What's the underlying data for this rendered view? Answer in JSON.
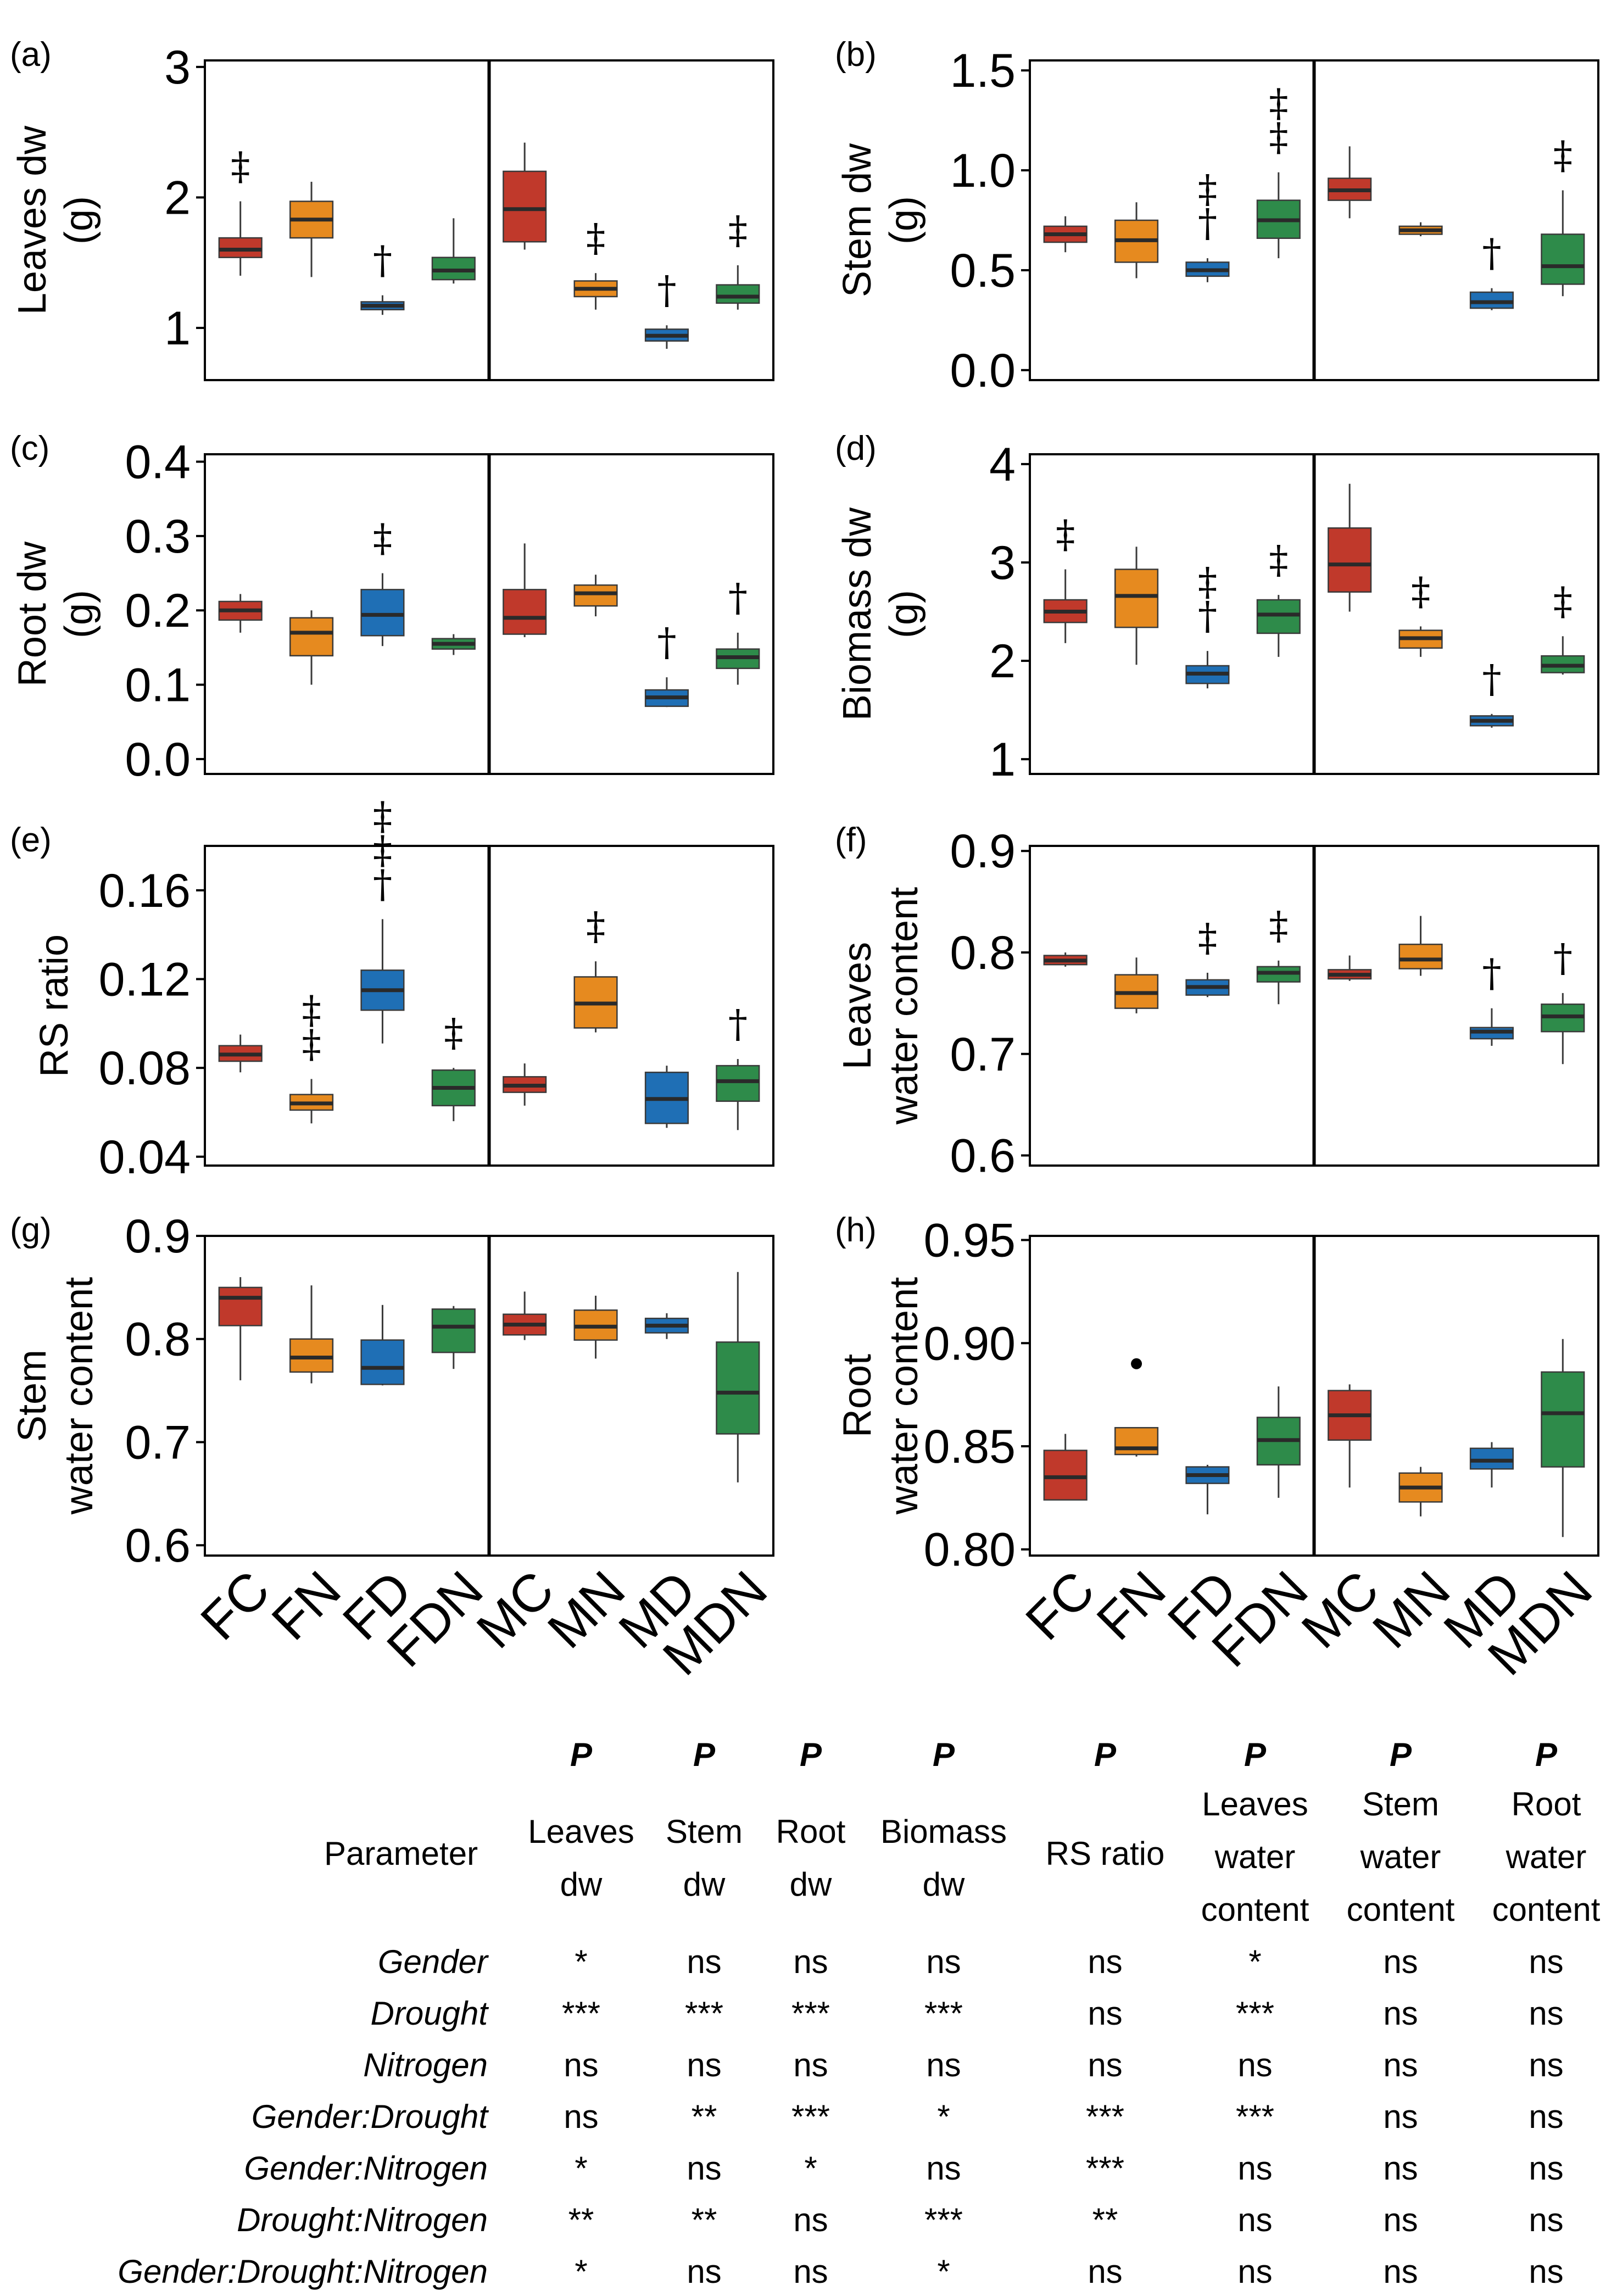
{
  "groups": [
    "FC",
    "FN",
    "FD",
    "FDN",
    "MC",
    "MN",
    "MD",
    "MDN"
  ],
  "colors": [
    "#c0392b",
    "#e68a1f",
    "#1f6fb5",
    "#2e8b4a",
    "#c0392b",
    "#e68a1f",
    "#1f6fb5",
    "#2e8b4a"
  ],
  "chart_data": [
    {
      "type": "box",
      "id": "a",
      "panel_label": "(a)",
      "ylabel": [
        "Leaves dw",
        "(g)"
      ],
      "ylim": [
        0.6,
        3.05
      ],
      "yticks": [
        1,
        2,
        3
      ],
      "ytick_labels": [
        "1",
        "2",
        "3"
      ],
      "boxes": [
        {
          "min": 1.4,
          "q1": 1.54,
          "median": 1.6,
          "q3": 1.69,
          "max": 1.97
        },
        {
          "min": 1.39,
          "q1": 1.69,
          "median": 1.83,
          "q3": 1.97,
          "max": 2.12
        },
        {
          "min": 1.1,
          "q1": 1.14,
          "median": 1.17,
          "q3": 1.2,
          "max": 1.25
        },
        {
          "min": 1.34,
          "q1": 1.37,
          "median": 1.44,
          "q3": 1.54,
          "max": 1.84
        },
        {
          "min": 1.6,
          "q1": 1.66,
          "median": 1.91,
          "q3": 2.2,
          "max": 2.42
        },
        {
          "min": 1.14,
          "q1": 1.24,
          "median": 1.3,
          "q3": 1.36,
          "max": 1.42
        },
        {
          "min": 0.84,
          "q1": 0.9,
          "median": 0.94,
          "q3": 0.99,
          "max": 1.02
        },
        {
          "min": 1.14,
          "q1": 1.19,
          "median": 1.24,
          "q3": 1.33,
          "max": 1.48
        }
      ],
      "markers": [
        [
          "‡"
        ],
        [],
        [
          "†"
        ],
        [],
        [],
        [
          "‡"
        ],
        [
          "†"
        ],
        [
          "‡"
        ]
      ],
      "outliers": []
    },
    {
      "type": "box",
      "id": "b",
      "panel_label": "(b)",
      "ylabel": [
        "Stem dw",
        "(g)"
      ],
      "ylim": [
        -0.05,
        1.55
      ],
      "yticks": [
        0.0,
        0.5,
        1.0,
        1.5
      ],
      "ytick_labels": [
        "0.0",
        "0.5",
        "1.0",
        "1.5"
      ],
      "boxes": [
        {
          "min": 0.59,
          "q1": 0.64,
          "median": 0.68,
          "q3": 0.72,
          "max": 0.77
        },
        {
          "min": 0.46,
          "q1": 0.54,
          "median": 0.65,
          "q3": 0.75,
          "max": 0.84
        },
        {
          "min": 0.44,
          "q1": 0.47,
          "median": 0.5,
          "q3": 0.54,
          "max": 0.56
        },
        {
          "min": 0.56,
          "q1": 0.66,
          "median": 0.75,
          "q3": 0.85,
          "max": 0.99
        },
        {
          "min": 0.76,
          "q1": 0.85,
          "median": 0.9,
          "q3": 0.96,
          "max": 1.12
        },
        {
          "min": 0.67,
          "q1": 0.68,
          "median": 0.7,
          "q3": 0.72,
          "max": 0.74
        },
        {
          "min": 0.3,
          "q1": 0.31,
          "median": 0.34,
          "q3": 0.39,
          "max": 0.41
        },
        {
          "min": 0.37,
          "q1": 0.43,
          "median": 0.52,
          "q3": 0.68,
          "max": 0.9
        }
      ],
      "markers": [
        [],
        [],
        [
          "‡",
          "†"
        ],
        [
          "‡",
          "‡"
        ],
        [],
        [],
        [
          "†"
        ],
        [
          "‡"
        ]
      ],
      "outliers": []
    },
    {
      "type": "box",
      "id": "c",
      "panel_label": "(c)",
      "ylabel": [
        "Root dw",
        "(g)"
      ],
      "ylim": [
        -0.02,
        0.41
      ],
      "yticks": [
        0.0,
        0.1,
        0.2,
        0.3,
        0.4
      ],
      "ytick_labels": [
        "0.0",
        "0.1",
        "0.2",
        "0.3",
        "0.4"
      ],
      "boxes": [
        {
          "min": 0.17,
          "q1": 0.187,
          "median": 0.2,
          "q3": 0.212,
          "max": 0.222
        },
        {
          "min": 0.1,
          "q1": 0.139,
          "median": 0.17,
          "q3": 0.19,
          "max": 0.2
        },
        {
          "min": 0.152,
          "q1": 0.166,
          "median": 0.194,
          "q3": 0.228,
          "max": 0.25
        },
        {
          "min": 0.14,
          "q1": 0.148,
          "median": 0.155,
          "q3": 0.162,
          "max": 0.168
        },
        {
          "min": 0.164,
          "q1": 0.168,
          "median": 0.19,
          "q3": 0.228,
          "max": 0.29
        },
        {
          "min": 0.192,
          "q1": 0.206,
          "median": 0.223,
          "q3": 0.234,
          "max": 0.248
        },
        {
          "min": 0.07,
          "q1": 0.071,
          "median": 0.083,
          "q3": 0.093,
          "max": 0.11
        },
        {
          "min": 0.1,
          "q1": 0.122,
          "median": 0.137,
          "q3": 0.148,
          "max": 0.17
        }
      ],
      "markers": [
        [],
        [],
        [
          "‡"
        ],
        [],
        [],
        [],
        [
          "†"
        ],
        [
          "†"
        ]
      ],
      "outliers": []
    },
    {
      "type": "box",
      "id": "d",
      "panel_label": "(d)",
      "ylabel": [
        "Biomass dw",
        "(g)"
      ],
      "ylim": [
        0.85,
        4.1
      ],
      "yticks": [
        1,
        2,
        3,
        4
      ],
      "ytick_labels": [
        "1",
        "2",
        "3",
        "4"
      ],
      "boxes": [
        {
          "min": 2.18,
          "q1": 2.39,
          "median": 2.5,
          "q3": 2.62,
          "max": 2.93
        },
        {
          "min": 1.96,
          "q1": 2.34,
          "median": 2.66,
          "q3": 2.93,
          "max": 3.16
        },
        {
          "min": 1.72,
          "q1": 1.77,
          "median": 1.87,
          "q3": 1.95,
          "max": 2.1
        },
        {
          "min": 2.04,
          "q1": 2.28,
          "median": 2.47,
          "q3": 2.62,
          "max": 2.67
        },
        {
          "min": 2.5,
          "q1": 2.7,
          "median": 2.98,
          "q3": 3.35,
          "max": 3.8
        },
        {
          "min": 2.04,
          "q1": 2.13,
          "median": 2.23,
          "q3": 2.31,
          "max": 2.35
        },
        {
          "min": 1.32,
          "q1": 1.34,
          "median": 1.39,
          "q3": 1.44,
          "max": 1.46
        },
        {
          "min": 1.86,
          "q1": 1.88,
          "median": 1.95,
          "q3": 2.05,
          "max": 2.25
        }
      ],
      "markers": [
        [
          "‡"
        ],
        [],
        [
          "‡",
          "†"
        ],
        [
          "‡"
        ],
        [],
        [
          "‡"
        ],
        [
          "†"
        ],
        [
          "‡"
        ]
      ],
      "outliers": []
    },
    {
      "type": "box",
      "id": "e",
      "panel_label": "(e)",
      "ylabel": [
        "RS ratio"
      ],
      "ylim": [
        0.036,
        0.18
      ],
      "yticks": [
        0.04,
        0.08,
        0.12,
        0.16
      ],
      "ytick_labels": [
        "0.04",
        "0.08",
        "0.12",
        "0.16"
      ],
      "boxes": [
        {
          "min": 0.078,
          "q1": 0.083,
          "median": 0.086,
          "q3": 0.09,
          "max": 0.095
        },
        {
          "min": 0.055,
          "q1": 0.061,
          "median": 0.064,
          "q3": 0.068,
          "max": 0.075
        },
        {
          "min": 0.091,
          "q1": 0.106,
          "median": 0.115,
          "q3": 0.124,
          "max": 0.147
        },
        {
          "min": 0.056,
          "q1": 0.063,
          "median": 0.071,
          "q3": 0.079,
          "max": 0.08
        },
        {
          "min": 0.063,
          "q1": 0.069,
          "median": 0.072,
          "q3": 0.076,
          "max": 0.082
        },
        {
          "min": 0.096,
          "q1": 0.098,
          "median": 0.109,
          "q3": 0.121,
          "max": 0.128
        },
        {
          "min": 0.053,
          "q1": 0.055,
          "median": 0.066,
          "q3": 0.078,
          "max": 0.081
        },
        {
          "min": 0.052,
          "q1": 0.065,
          "median": 0.074,
          "q3": 0.081,
          "max": 0.084
        }
      ],
      "markers": [
        [],
        [
          "‡",
          "‡"
        ],
        [
          "‡",
          "‡",
          "†"
        ],
        [
          "‡"
        ],
        [],
        [
          "‡"
        ],
        [],
        [
          "†"
        ]
      ],
      "outliers": []
    },
    {
      "type": "box",
      "id": "f",
      "panel_label": "(f)",
      "ylabel": [
        "Leaves",
        "water content"
      ],
      "ylim": [
        0.59,
        0.905
      ],
      "yticks": [
        0.6,
        0.7,
        0.8,
        0.9
      ],
      "ytick_labels": [
        "0.6",
        "0.7",
        "0.8",
        "0.9"
      ],
      "boxes": [
        {
          "min": 0.786,
          "q1": 0.788,
          "median": 0.792,
          "q3": 0.797,
          "max": 0.8
        },
        {
          "min": 0.74,
          "q1": 0.745,
          "median": 0.76,
          "q3": 0.778,
          "max": 0.795
        },
        {
          "min": 0.756,
          "q1": 0.758,
          "median": 0.766,
          "q3": 0.773,
          "max": 0.78
        },
        {
          "min": 0.749,
          "q1": 0.771,
          "median": 0.78,
          "q3": 0.786,
          "max": 0.792
        },
        {
          "min": 0.772,
          "q1": 0.774,
          "median": 0.778,
          "q3": 0.783,
          "max": 0.797
        },
        {
          "min": 0.777,
          "q1": 0.784,
          "median": 0.793,
          "q3": 0.808,
          "max": 0.836
        },
        {
          "min": 0.708,
          "q1": 0.715,
          "median": 0.722,
          "q3": 0.726,
          "max": 0.745
        },
        {
          "min": 0.69,
          "q1": 0.722,
          "median": 0.737,
          "q3": 0.749,
          "max": 0.76
        }
      ],
      "markers": [
        [],
        [],
        [
          "‡"
        ],
        [
          "‡"
        ],
        [],
        [],
        [
          "†"
        ],
        [
          "†"
        ]
      ],
      "outliers": []
    },
    {
      "type": "box",
      "id": "g",
      "panel_label": "(g)",
      "ylabel": [
        "Stem",
        "water content"
      ],
      "ylim": [
        0.59,
        0.9
      ],
      "yticks": [
        0.6,
        0.7,
        0.8,
        0.9
      ],
      "ytick_labels": [
        "0.6",
        "0.7",
        "0.8",
        "0.9"
      ],
      "boxes": [
        {
          "min": 0.76,
          "q1": 0.813,
          "median": 0.84,
          "q3": 0.85,
          "max": 0.86
        },
        {
          "min": 0.757,
          "q1": 0.768,
          "median": 0.782,
          "q3": 0.8,
          "max": 0.852
        },
        {
          "min": 0.755,
          "q1": 0.756,
          "median": 0.772,
          "q3": 0.799,
          "max": 0.833
        },
        {
          "min": 0.771,
          "q1": 0.787,
          "median": 0.812,
          "q3": 0.829,
          "max": 0.832
        },
        {
          "min": 0.799,
          "q1": 0.804,
          "median": 0.814,
          "q3": 0.824,
          "max": 0.846
        },
        {
          "min": 0.781,
          "q1": 0.799,
          "median": 0.812,
          "q3": 0.828,
          "max": 0.842
        },
        {
          "min": 0.8,
          "q1": 0.806,
          "median": 0.813,
          "q3": 0.82,
          "max": 0.825
        },
        {
          "min": 0.661,
          "q1": 0.708,
          "median": 0.748,
          "q3": 0.797,
          "max": 0.865
        }
      ],
      "markers": [
        [],
        [],
        [],
        [],
        [],
        [],
        [],
        []
      ],
      "outliers": []
    },
    {
      "type": "box",
      "id": "h",
      "panel_label": "(h)",
      "ylabel": [
        "Root",
        "water content"
      ],
      "ylim": [
        0.797,
        0.952
      ],
      "yticks": [
        0.8,
        0.85,
        0.9,
        0.95
      ],
      "ytick_labels": [
        "0.80",
        "0.85",
        "0.90",
        "0.95"
      ],
      "boxes": [
        {
          "min": 0.824,
          "q1": 0.824,
          "median": 0.835,
          "q3": 0.848,
          "max": 0.856
        },
        {
          "min": 0.845,
          "q1": 0.846,
          "median": 0.849,
          "q3": 0.859,
          "max": 0.859
        },
        {
          "min": 0.817,
          "q1": 0.832,
          "median": 0.836,
          "q3": 0.84,
          "max": 0.841
        },
        {
          "min": 0.825,
          "q1": 0.841,
          "median": 0.853,
          "q3": 0.864,
          "max": 0.879
        },
        {
          "min": 0.83,
          "q1": 0.853,
          "median": 0.865,
          "q3": 0.877,
          "max": 0.88
        },
        {
          "min": 0.816,
          "q1": 0.823,
          "median": 0.83,
          "q3": 0.837,
          "max": 0.84
        },
        {
          "min": 0.83,
          "q1": 0.839,
          "median": 0.843,
          "q3": 0.849,
          "max": 0.852
        },
        {
          "min": 0.806,
          "q1": 0.84,
          "median": 0.866,
          "q3": 0.886,
          "max": 0.902
        }
      ],
      "markers": [
        [],
        [],
        [],
        [],
        [],
        [],
        [],
        []
      ],
      "outliers": [
        {
          "group": 1,
          "value": 0.89
        }
      ]
    }
  ],
  "table": {
    "p_label": "P",
    "header_parameter": "Parameter",
    "columns": [
      [
        "Leaves",
        "dw"
      ],
      [
        "Stem",
        "dw"
      ],
      [
        "Root",
        "dw"
      ],
      [
        "Biomass",
        "dw"
      ],
      [
        "RS ratio"
      ],
      [
        "Leaves",
        "water",
        "content"
      ],
      [
        "Stem",
        "water",
        "content"
      ],
      [
        "Root",
        "water",
        "content"
      ]
    ],
    "rows": [
      {
        "name": "Gender",
        "values": [
          "*",
          "ns",
          "ns",
          "ns",
          "ns",
          "*",
          "ns",
          "ns"
        ]
      },
      {
        "name": "Drought",
        "values": [
          "***",
          "***",
          "***",
          "***",
          "ns",
          "***",
          "ns",
          "ns"
        ]
      },
      {
        "name": "Nitrogen",
        "values": [
          "ns",
          "ns",
          "ns",
          "ns",
          "ns",
          "ns",
          "ns",
          "ns"
        ]
      },
      {
        "name": "Gender:Drought",
        "values": [
          "ns",
          "**",
          "***",
          "*",
          "***",
          "***",
          "ns",
          "ns"
        ]
      },
      {
        "name": "Gender:Nitrogen",
        "values": [
          "*",
          "ns",
          "*",
          "ns",
          "***",
          "ns",
          "ns",
          "ns"
        ]
      },
      {
        "name": "Drought:Nitrogen",
        "values": [
          "**",
          "**",
          "ns",
          "***",
          "**",
          "ns",
          "ns",
          "ns"
        ]
      },
      {
        "name": "Gender:Drought:Nitrogen",
        "values": [
          "*",
          "ns",
          "ns",
          "*",
          "ns",
          "ns",
          "ns",
          "ns"
        ]
      }
    ]
  }
}
